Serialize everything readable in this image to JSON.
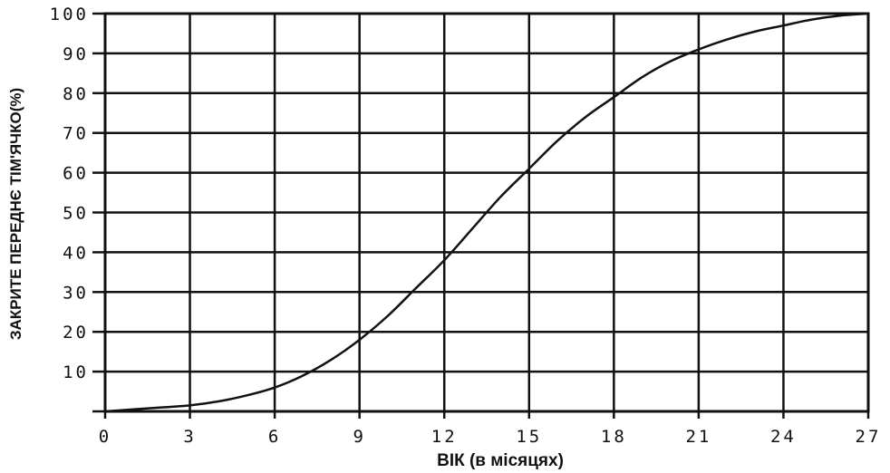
{
  "chart_data": {
    "type": "line",
    "title": "",
    "xlabel": "ВІК (в місяцях)",
    "ylabel": "ЗАКРИТЕ ПЕРЕДНЄ ТІМ'ЯЧКО(%)",
    "xlim": [
      0,
      27
    ],
    "ylim": [
      0,
      100
    ],
    "x_ticks": [
      "0",
      "3",
      "6",
      "9",
      "12",
      "15",
      "18",
      "21",
      "24",
      "27"
    ],
    "y_ticks": [
      "10",
      "20",
      "30",
      "40",
      "50",
      "60",
      "70",
      "80",
      "90",
      "100"
    ],
    "grid": true,
    "legend": "none",
    "line_color": "#111111",
    "series": [
      {
        "x": [
          0,
          1,
          2,
          3,
          4,
          5,
          6,
          7,
          8,
          9,
          10,
          11,
          12,
          13,
          14,
          15,
          16,
          17,
          18,
          19,
          20,
          21,
          22,
          23,
          24,
          25,
          26,
          27
        ],
        "values": [
          0,
          0.5,
          1,
          1.5,
          2.5,
          4,
          6,
          9,
          13,
          18,
          24,
          31,
          38,
          46,
          54,
          61,
          68,
          74,
          79,
          84,
          88,
          91,
          93.5,
          95.5,
          97,
          98.5,
          99.5,
          100
        ]
      }
    ]
  }
}
